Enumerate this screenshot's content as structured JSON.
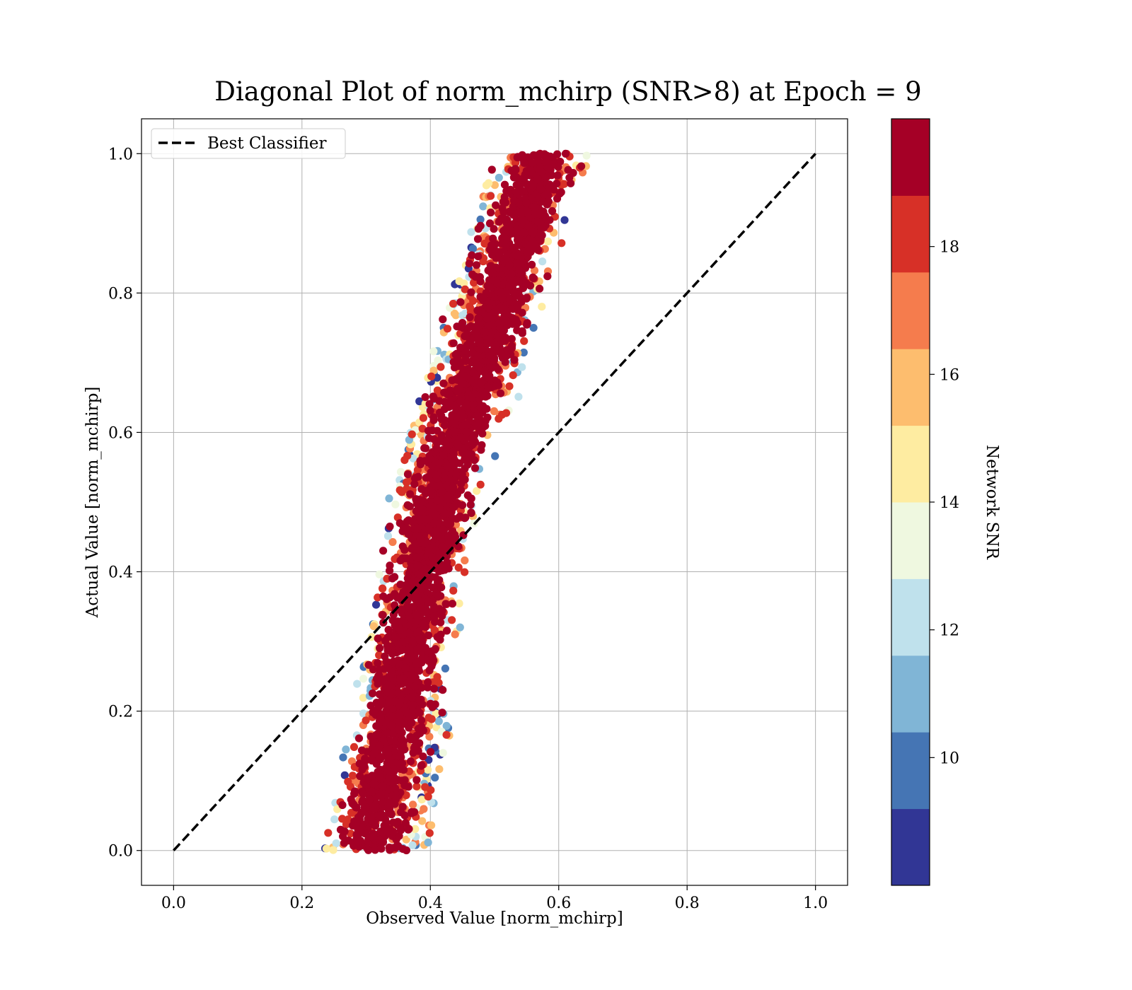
{
  "chart_data": {
    "type": "scatter",
    "title": "Diagonal Plot of norm_mchirp (SNR>8) at Epoch = 9",
    "xlabel": "Observed Value [norm_mchirp]",
    "ylabel": "Actual Value [norm_mchirp]",
    "xlim": [
      -0.05,
      1.05
    ],
    "ylim": [
      -0.05,
      1.05
    ],
    "x_ticks": [
      "0.0",
      "0.2",
      "0.4",
      "0.6",
      "0.8",
      "1.0"
    ],
    "y_ticks": [
      "0.0",
      "0.2",
      "0.4",
      "0.6",
      "0.8",
      "1.0"
    ],
    "grid": true,
    "reference_line": {
      "name": "Best Classifier",
      "x": [
        0.0,
        1.0
      ],
      "y": [
        0.0,
        1.0
      ],
      "style": "dashed",
      "color": "#000000"
    },
    "legend": {
      "placement": "top-left",
      "entries": [
        "Best Classifier"
      ]
    },
    "colorbar": {
      "label": "Network SNR",
      "range": [
        8,
        20
      ],
      "ticks": [
        "10",
        "12",
        "14",
        "16",
        "18"
      ],
      "bins": 10,
      "colors": [
        "#313695",
        "#4575b4",
        "#80b5d6",
        "#bfe1ec",
        "#eff8e0",
        "#feeca1",
        "#fdbd6e",
        "#f57c4d",
        "#d73027",
        "#a50026"
      ]
    },
    "scatter": {
      "description_values": "predicted vs actual norm_mchirp, colored by network SNR",
      "x_range": [
        0.25,
        0.67
      ],
      "y_range": [
        0.0,
        1.0
      ],
      "dense_core_color": "#a50026"
    }
  }
}
